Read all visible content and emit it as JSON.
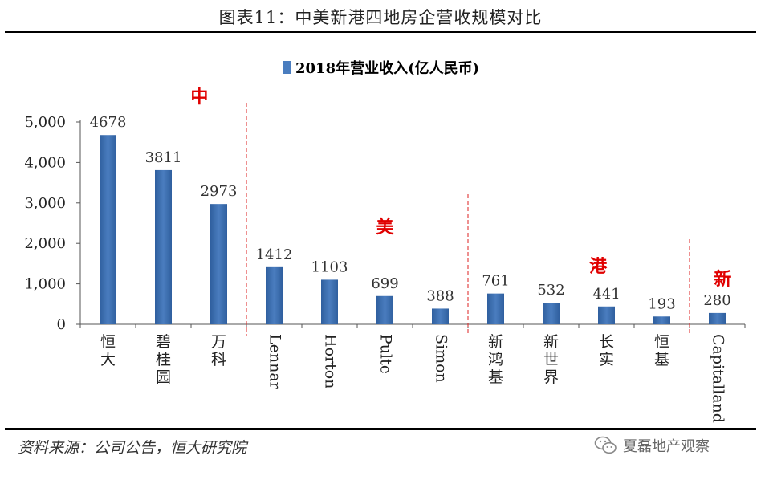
{
  "figure_title": "图表11：中美新港四地房企营收规模对比",
  "source_note": "资料来源：公司公告，恒大研究院",
  "watermark": "夏磊地产观察",
  "watermark_icon": "wechat-icon",
  "chart_data": {
    "type": "bar",
    "title": "",
    "legend": [
      "2018年营业收入(亿人民币)"
    ],
    "legend_position": "top-center",
    "xlabel": "",
    "ylabel": "",
    "ylim": [
      0,
      5000
    ],
    "yticks": [
      "0",
      "1,000",
      "2,000",
      "3,000",
      "4,000",
      "5,000"
    ],
    "grid": false,
    "bar_color": "#4a7dbf",
    "categories": [
      "恒大",
      "碧桂园",
      "万科",
      "Lennar",
      "Horton",
      "Pulte",
      "Simon",
      "新鸿基",
      "新世界",
      "长实",
      "恒基",
      "Capitalland"
    ],
    "series": [
      {
        "name": "2018年营业收入(亿人民币)",
        "values": [
          4678,
          3811,
          2973,
          1412,
          1103,
          699,
          388,
          761,
          532,
          441,
          193,
          280
        ]
      }
    ],
    "groups": [
      {
        "label": "中",
        "color": "#e00000"
      },
      {
        "label": "美",
        "color": "#e00000"
      },
      {
        "label": "港",
        "color": "#e00000"
      },
      {
        "label": "新",
        "color": "#e00000"
      }
    ],
    "group_ranges": [
      [
        0,
        2
      ],
      [
        3,
        6
      ],
      [
        7,
        10
      ],
      [
        11,
        11
      ]
    ],
    "divider_color": "#d22"
  }
}
